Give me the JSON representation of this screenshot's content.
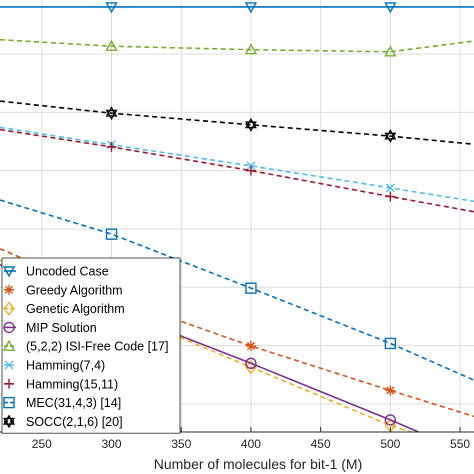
{
  "chart_data": {
    "type": "line",
    "xlabel": "Number of molecules for bit-1 (M)",
    "ylabel": "",
    "title": "",
    "xlim": [
      220,
      560
    ],
    "ylim": [
      0,
      1
    ],
    "x_ticks": [
      250,
      300,
      350,
      400,
      450,
      500,
      550
    ],
    "x_tick_labels": [
      "250",
      "300",
      "350",
      "400",
      "450",
      "500",
      "550"
    ],
    "grid": true,
    "legend_position": "bottom-left",
    "series": [
      {
        "name": "Uncoded Case",
        "color": "#0072bd",
        "marker": "triangle-down",
        "dash": "solid",
        "x": [
          220,
          300,
          400,
          500,
          560
        ],
        "y": [
          0.984,
          0.984,
          0.984,
          0.984,
          0.984
        ],
        "marker_x": [
          300,
          400,
          500
        ]
      },
      {
        "name": "Greedy Algorithm",
        "color": "#d95319",
        "marker": "asterisk",
        "dash": "dashed",
        "x": [
          220,
          300,
          400,
          500,
          560
        ],
        "y": [
          0.424,
          0.313,
          0.199,
          0.096,
          0.036
        ],
        "marker_x": [
          300,
          400,
          500
        ]
      },
      {
        "name": "Genetic Algorithm",
        "color": "#edb120",
        "marker": "diamond",
        "dash": "dashed",
        "x": [
          220,
          300,
          400,
          500,
          560
        ],
        "y": [
          0.398,
          0.286,
          0.15,
          0.015,
          -0.048
        ],
        "marker_x": [
          300,
          400,
          500
        ]
      },
      {
        "name": "MIP Solution",
        "color": "#7e2f8e",
        "marker": "circle",
        "dash": "solid",
        "x": [
          220,
          300,
          400,
          500,
          560
        ],
        "y": [
          0.387,
          0.285,
          0.159,
          0.028,
          -0.055
        ],
        "marker_x": [
          300,
          400,
          500
        ]
      },
      {
        "name": "(5,2,2) ISI-Free Code [17]",
        "color": "#77ac30",
        "marker": "triangle-up",
        "dash": "dashed",
        "x": [
          220,
          300,
          400,
          500,
          560
        ],
        "y": [
          0.908,
          0.893,
          0.885,
          0.88,
          0.905
        ],
        "marker_x": [
          300,
          400,
          500
        ]
      },
      {
        "name": "Hamming(7,4)",
        "color": "#4dbeee",
        "marker": "x",
        "dash": "dashed",
        "x": [
          220,
          300,
          400,
          500,
          560
        ],
        "y": [
          0.705,
          0.665,
          0.616,
          0.565,
          0.534
        ],
        "marker_x": [
          300,
          400,
          500
        ]
      },
      {
        "name": "Hamming(15,11)",
        "color": "#a2142f",
        "marker": "plus",
        "dash": "dashed",
        "x": [
          220,
          300,
          400,
          500,
          560
        ],
        "y": [
          0.7,
          0.66,
          0.605,
          0.545,
          0.51
        ],
        "marker_x": [
          300,
          400,
          500
        ]
      },
      {
        "name": "MEC(31,4,3) [14]",
        "color": "#0072bd",
        "marker": "square",
        "dash": "dashed",
        "x": [
          220,
          300,
          400,
          500,
          560
        ],
        "y": [
          0.537,
          0.458,
          0.333,
          0.205,
          0.12
        ],
        "marker_x": [
          300,
          400,
          500
        ]
      },
      {
        "name": "SOCC(2,1,6) [20]",
        "color": "#000000",
        "marker": "hexagram",
        "dash": "dashed",
        "x": [
          220,
          300,
          400,
          500,
          560
        ],
        "y": [
          0.766,
          0.738,
          0.711,
          0.685,
          0.666
        ],
        "marker_x": [
          300,
          400,
          500
        ]
      }
    ]
  }
}
